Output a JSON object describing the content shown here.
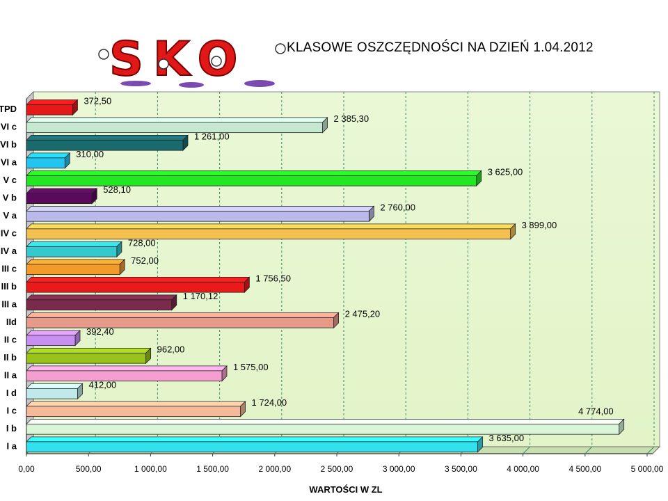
{
  "logo_text": "SKO",
  "chart_data": {
    "type": "bar",
    "orientation": "horizontal",
    "title": "KLASOWE OSZCZĘDNOŚCI NA DZIEŃ 1.04.2012",
    "xlabel": "WARTOŚCI W ZL",
    "ylabel": "",
    "xlim": [
      0,
      5000
    ],
    "xticks": [
      "0,00",
      "500,00",
      "1 000,00",
      "1 500,00",
      "2 000,00",
      "2 500,00",
      "3 000,00",
      "3 500,00",
      "4 000,00",
      "4 500,00",
      "5 000,00"
    ],
    "grid": true,
    "categories": [
      "I a",
      "I b",
      "I c",
      "I d",
      "II a",
      "II b",
      "II c",
      "IId",
      "III a",
      "III b",
      "III c",
      "IV a",
      "IV c",
      "V a",
      "V b",
      "V c",
      "VI a",
      "VI b",
      "VI c",
      "TPD"
    ],
    "values": [
      3635.0,
      4774.0,
      1724.0,
      412.0,
      1575.0,
      962.0,
      392.4,
      2475.2,
      1170.12,
      1756.5,
      752.0,
      728.0,
      3899.0,
      2760.0,
      528.1,
      3625.0,
      310.0,
      1261.0,
      2385.3,
      372.5
    ],
    "value_labels": [
      "3 635,00",
      "4 774,00",
      "1 724,00",
      "412,00",
      "1 575,00",
      "962,00",
      "392,40",
      "2 475,20",
      "1 170,12",
      "1 756,50",
      "752,00",
      "728,00",
      "3 899,00",
      "2 760,00",
      "528,10",
      "3 625,00",
      "310,00",
      "1 261,00",
      "2 385,30",
      "372,50"
    ],
    "colors": [
      "#33e0ee",
      "#d8f5d8",
      "#f5b898",
      "#bfe9ea",
      "#f59ed0",
      "#99c21a",
      "#c98ff0",
      "#e89a8a",
      "#7a2a4a",
      "#e81a1a",
      "#f29a2a",
      "#33c9d0",
      "#f4c050",
      "#b9b9ea",
      "#5a0a5a",
      "#22e822",
      "#22c4f0",
      "#1a6a6e",
      "#c4e8d0",
      "#e81818"
    ]
  }
}
